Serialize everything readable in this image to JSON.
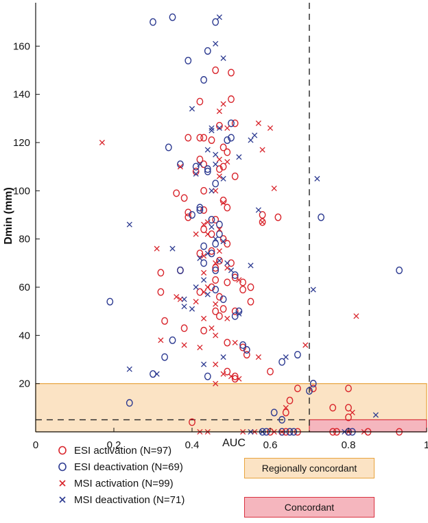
{
  "chart_data": {
    "type": "scatter",
    "xlabel": "AUC",
    "ylabel": "Dmin (mm)",
    "xlim": [
      0,
      1
    ],
    "ylim": [
      0,
      178
    ],
    "x_ticks": [
      "0",
      "0.2",
      "0.4",
      "0.6",
      "0.8",
      "1"
    ],
    "y_ticks": [
      "20",
      "40",
      "60",
      "80",
      "100",
      "120",
      "140",
      "160"
    ],
    "auc_threshold": 0.7,
    "dmin_threshold": 5,
    "regional_threshold": 20,
    "region_colors": {
      "regional_fill": "#fbe3c4",
      "regional_edge": "#e8a33c",
      "concordant_fill": "#f5b6be",
      "concordant_edge": "#d9303f"
    },
    "regions": {
      "regionally_concordant": "Regionally concordant",
      "concordant": "Concordant"
    },
    "series": [
      {
        "name": "ESI activation (N=97)",
        "color": "#d8232a",
        "marker": "circle",
        "points": [
          [
            0.46,
            150
          ],
          [
            0.5,
            149
          ],
          [
            0.42,
            137
          ],
          [
            0.5,
            138
          ],
          [
            0.47,
            127
          ],
          [
            0.51,
            128
          ],
          [
            0.42,
            122
          ],
          [
            0.43,
            122
          ],
          [
            0.39,
            122
          ],
          [
            0.45,
            121
          ],
          [
            0.48,
            118
          ],
          [
            0.49,
            116
          ],
          [
            0.48,
            110
          ],
          [
            0.42,
            113
          ],
          [
            0.43,
            111
          ],
          [
            0.41,
            108
          ],
          [
            0.47,
            109
          ],
          [
            0.51,
            106
          ],
          [
            0.36,
            99
          ],
          [
            0.38,
            97
          ],
          [
            0.43,
            100
          ],
          [
            0.48,
            96
          ],
          [
            0.49,
            93
          ],
          [
            0.39,
            91
          ],
          [
            0.43,
            92
          ],
          [
            0.39,
            89
          ],
          [
            0.46,
            88
          ],
          [
            0.58,
            90
          ],
          [
            0.62,
            89
          ],
          [
            0.58,
            87
          ],
          [
            0.43,
            84
          ],
          [
            0.45,
            82
          ],
          [
            0.48,
            80
          ],
          [
            0.49,
            78
          ],
          [
            0.42,
            74
          ],
          [
            0.45,
            75
          ],
          [
            0.47,
            71
          ],
          [
            0.5,
            70
          ],
          [
            0.46,
            68
          ],
          [
            0.37,
            67
          ],
          [
            0.32,
            66
          ],
          [
            0.46,
            63
          ],
          [
            0.49,
            62
          ],
          [
            0.51,
            64
          ],
          [
            0.53,
            62
          ],
          [
            0.55,
            60
          ],
          [
            0.53,
            59
          ],
          [
            0.45,
            60
          ],
          [
            0.42,
            58
          ],
          [
            0.32,
            58
          ],
          [
            0.47,
            56
          ],
          [
            0.55,
            54
          ],
          [
            0.48,
            51
          ],
          [
            0.46,
            50
          ],
          [
            0.51,
            50
          ],
          [
            0.47,
            48
          ],
          [
            0.33,
            46
          ],
          [
            0.43,
            42
          ],
          [
            0.38,
            43
          ],
          [
            0.49,
            37
          ],
          [
            0.53,
            35
          ],
          [
            0.54,
            32
          ],
          [
            0.49,
            25
          ],
          [
            0.51,
            22
          ],
          [
            0.51,
            23
          ],
          [
            0.6,
            25
          ],
          [
            0.67,
            18
          ],
          [
            0.71,
            18
          ],
          [
            0.8,
            18
          ],
          [
            0.65,
            13
          ],
          [
            0.76,
            10
          ],
          [
            0.8,
            10
          ],
          [
            0.64,
            8
          ],
          [
            0.8,
            6
          ],
          [
            0.4,
            4
          ],
          [
            0.63,
            0
          ],
          [
            0.64,
            0
          ],
          [
            0.65,
            0
          ],
          [
            0.67,
            0
          ],
          [
            0.6,
            0
          ],
          [
            0.76,
            0
          ],
          [
            0.77,
            0
          ],
          [
            0.8,
            0
          ],
          [
            0.85,
            0
          ],
          [
            0.93,
            0
          ]
        ]
      },
      {
        "name": "ESI deactivation (N=69)",
        "color": "#2b3990",
        "marker": "circle",
        "points": [
          [
            0.3,
            170
          ],
          [
            0.35,
            172
          ],
          [
            0.44,
            158
          ],
          [
            0.39,
            154
          ],
          [
            0.46,
            170
          ],
          [
            0.43,
            146
          ],
          [
            0.5,
            128
          ],
          [
            0.5,
            122
          ],
          [
            0.49,
            121
          ],
          [
            0.34,
            118
          ],
          [
            0.37,
            111
          ],
          [
            0.41,
            110
          ],
          [
            0.44,
            109
          ],
          [
            0.44,
            108
          ],
          [
            0.46,
            103
          ],
          [
            0.42,
            93
          ],
          [
            0.42,
            92
          ],
          [
            0.4,
            90
          ],
          [
            0.45,
            88
          ],
          [
            0.47,
            86
          ],
          [
            0.47,
            82
          ],
          [
            0.46,
            78
          ],
          [
            0.43,
            77
          ],
          [
            0.45,
            74
          ],
          [
            0.43,
            70
          ],
          [
            0.37,
            67
          ],
          [
            0.46,
            67
          ],
          [
            0.51,
            65
          ],
          [
            0.46,
            59
          ],
          [
            0.48,
            55
          ],
          [
            0.19,
            54
          ],
          [
            0.52,
            50
          ],
          [
            0.51,
            48
          ],
          [
            0.35,
            38
          ],
          [
            0.53,
            36
          ],
          [
            0.54,
            34
          ],
          [
            0.33,
            31
          ],
          [
            0.63,
            29
          ],
          [
            0.3,
            24
          ],
          [
            0.44,
            23
          ],
          [
            0.67,
            32
          ],
          [
            0.71,
            20
          ],
          [
            0.7,
            17
          ],
          [
            0.24,
            12
          ],
          [
            0.61,
            8
          ],
          [
            0.63,
            5
          ],
          [
            0.73,
            89
          ],
          [
            0.93,
            67
          ],
          [
            0.65,
            0
          ],
          [
            0.66,
            0
          ],
          [
            0.58,
            0
          ],
          [
            0.59,
            0
          ],
          [
            0.63,
            0
          ],
          [
            0.8,
            0
          ],
          [
            0.81,
            0
          ]
        ]
      },
      {
        "name": "MSI activation (N=99)",
        "color": "#d8232a",
        "marker": "x",
        "points": [
          [
            0.17,
            120
          ],
          [
            0.48,
            136
          ],
          [
            0.47,
            133
          ],
          [
            0.49,
            126
          ],
          [
            0.57,
            128
          ],
          [
            0.6,
            126
          ],
          [
            0.58,
            117
          ],
          [
            0.47,
            113
          ],
          [
            0.49,
            112
          ],
          [
            0.37,
            110
          ],
          [
            0.47,
            106
          ],
          [
            0.61,
            101
          ],
          [
            0.46,
            100
          ],
          [
            0.48,
            95
          ],
          [
            0.58,
            87
          ],
          [
            0.44,
            87
          ],
          [
            0.43,
            86
          ],
          [
            0.47,
            84
          ],
          [
            0.44,
            82
          ],
          [
            0.41,
            82
          ],
          [
            0.31,
            76
          ],
          [
            0.47,
            75
          ],
          [
            0.43,
            73
          ],
          [
            0.46,
            70
          ],
          [
            0.49,
            68
          ],
          [
            0.43,
            66
          ],
          [
            0.52,
            63
          ],
          [
            0.44,
            60
          ],
          [
            0.43,
            58
          ],
          [
            0.36,
            56
          ],
          [
            0.37,
            55
          ],
          [
            0.41,
            54
          ],
          [
            0.46,
            53
          ],
          [
            0.43,
            47
          ],
          [
            0.49,
            47
          ],
          [
            0.82,
            48
          ],
          [
            0.45,
            43
          ],
          [
            0.46,
            40
          ],
          [
            0.32,
            38
          ],
          [
            0.51,
            37
          ],
          [
            0.38,
            36
          ],
          [
            0.42,
            35
          ],
          [
            0.57,
            31
          ],
          [
            0.46,
            28
          ],
          [
            0.69,
            36
          ],
          [
            0.48,
            24
          ],
          [
            0.5,
            23
          ],
          [
            0.52,
            22
          ],
          [
            0.46,
            20
          ],
          [
            0.64,
            10
          ],
          [
            0.81,
            8
          ],
          [
            0.42,
            0
          ],
          [
            0.44,
            0
          ],
          [
            0.53,
            0
          ],
          [
            0.56,
            0
          ],
          [
            0.61,
            0
          ],
          [
            0.63,
            0
          ],
          [
            0.8,
            0
          ],
          [
            0.84,
            0
          ]
        ]
      },
      {
        "name": "MSI deactivation (N=71)",
        "color": "#2b3990",
        "marker": "x",
        "points": [
          [
            0.47,
            172
          ],
          [
            0.46,
            161
          ],
          [
            0.48,
            155
          ],
          [
            0.4,
            134
          ],
          [
            0.45,
            126
          ],
          [
            0.47,
            126
          ],
          [
            0.45,
            125
          ],
          [
            0.55,
            121
          ],
          [
            0.56,
            123
          ],
          [
            0.44,
            117
          ],
          [
            0.46,
            115
          ],
          [
            0.52,
            114
          ],
          [
            0.42,
            111
          ],
          [
            0.46,
            111
          ],
          [
            0.41,
            107
          ],
          [
            0.45,
            100
          ],
          [
            0.48,
            105
          ],
          [
            0.24,
            86
          ],
          [
            0.57,
            92
          ],
          [
            0.45,
            85
          ],
          [
            0.46,
            80
          ],
          [
            0.48,
            79
          ],
          [
            0.35,
            76
          ],
          [
            0.44,
            74
          ],
          [
            0.42,
            72
          ],
          [
            0.47,
            71
          ],
          [
            0.49,
            70
          ],
          [
            0.5,
            67
          ],
          [
            0.55,
            69
          ],
          [
            0.43,
            63
          ],
          [
            0.41,
            60
          ],
          [
            0.44,
            57
          ],
          [
            0.38,
            55
          ],
          [
            0.38,
            52
          ],
          [
            0.4,
            51
          ],
          [
            0.52,
            49
          ],
          [
            0.48,
            31
          ],
          [
            0.24,
            26
          ],
          [
            0.31,
            24
          ],
          [
            0.43,
            28
          ],
          [
            0.64,
            31
          ],
          [
            0.71,
            59
          ],
          [
            0.72,
            105
          ],
          [
            0.87,
            7
          ],
          [
            0.55,
            0
          ],
          [
            0.58,
            0
          ],
          [
            0.79,
            0
          ]
        ]
      }
    ]
  }
}
